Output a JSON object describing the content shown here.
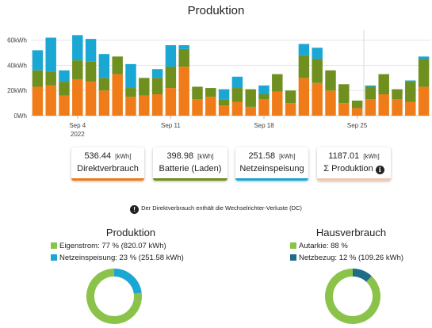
{
  "header": {
    "title": "Produktion"
  },
  "chart_data": {
    "type": "bar",
    "stacked": true,
    "y_tick_labels": [
      "0Wh",
      "20kWh",
      "40kWh",
      "60kWh"
    ],
    "y_ticks": [
      0,
      20,
      40,
      60
    ],
    "ylim": [
      0,
      68
    ],
    "x_tick_labels": [
      {
        "label": "Sep 4",
        "sub": "2022",
        "index": 3
      },
      {
        "label": "Sep 11",
        "sub": "",
        "index": 10
      },
      {
        "label": "Sep 18",
        "sub": "",
        "index": 17
      },
      {
        "label": "Sep 25",
        "sub": "",
        "index": 24
      }
    ],
    "categories": [
      "Sep 1",
      "Sep 2",
      "Sep 3",
      "Sep 4",
      "Sep 5",
      "Sep 6",
      "Sep 7",
      "Sep 8",
      "Sep 9",
      "Sep 10",
      "Sep 11",
      "Sep 12",
      "Sep 13",
      "Sep 14",
      "Sep 15",
      "Sep 16",
      "Sep 17",
      "Sep 18",
      "Sep 19",
      "Sep 20",
      "Sep 21",
      "Sep 22",
      "Sep 23",
      "Sep 24",
      "Sep 25",
      "Sep 26",
      "Sep 27",
      "Sep 28",
      "Sep 29",
      "Sep 30"
    ],
    "series": [
      {
        "name": "Direktverbrauch",
        "color": "#f07c19",
        "values": [
          23,
          24,
          16,
          29,
          27,
          20,
          33,
          15,
          16,
          17,
          22,
          39,
          13,
          15,
          8,
          11,
          7,
          13,
          19,
          10,
          30,
          26,
          20,
          10,
          6,
          13,
          17,
          13,
          11,
          23
        ]
      },
      {
        "name": "Batterie (Laden)",
        "color": "#6f8f1e",
        "values": [
          13,
          11,
          11,
          15,
          16,
          10,
          14,
          7,
          14,
          13,
          17,
          14,
          10,
          7,
          5,
          11,
          14,
          4,
          14,
          10,
          18,
          19,
          16,
          15,
          6,
          10,
          16,
          8,
          16,
          22
        ]
      },
      {
        "name": "Netzeinspeisung",
        "color": "#1ba7d3",
        "values": [
          16,
          27,
          9,
          20,
          18,
          19,
          0,
          19,
          0,
          7,
          17,
          3,
          0,
          0,
          8,
          9,
          0,
          7,
          0,
          0,
          9,
          9,
          0,
          0,
          0,
          1,
          0,
          0,
          1,
          2
        ]
      }
    ],
    "cursor_index": 25
  },
  "cards": [
    {
      "value": "536.44",
      "unit": "[kWh]",
      "name": "Direktverbrauch",
      "color": "#f07c19"
    },
    {
      "value": "398.98",
      "unit": "[kWh]",
      "name": "Batterie (Laden)",
      "color": "#6f8f1e"
    },
    {
      "value": "251.58",
      "unit": "[kWh]",
      "name": "Netzeinspeisung",
      "color": "#1ba7d3"
    },
    {
      "value": "1187.01",
      "unit": "[kWh]",
      "name": "Σ Produktion",
      "color": "#f2c9ad",
      "info": "i"
    }
  ],
  "note": {
    "icon": "!",
    "text": "Der Direktverbrauch enthält die Wechselrichter-Verluste (DC)"
  },
  "donuts": {
    "produktion": {
      "title": "Produktion",
      "legend": [
        {
          "text": "Eigenstrom: 77 % (820.07 kWh)",
          "color": "#8bc34a"
        },
        {
          "text": "Netzeinspeisung: 23 % (251.58 kWh)",
          "color": "#1ba7d3"
        }
      ],
      "fraction_primary": 0.77
    },
    "hausverbrauch": {
      "title": "Hausverbrauch",
      "legend": [
        {
          "text": "Autarkie: 88 %",
          "color": "#8bc34a"
        },
        {
          "text": "Netzbezug: 12 % (109.26 kWh)",
          "color": "#1e6c87"
        }
      ],
      "fraction_primary": 0.88
    }
  }
}
